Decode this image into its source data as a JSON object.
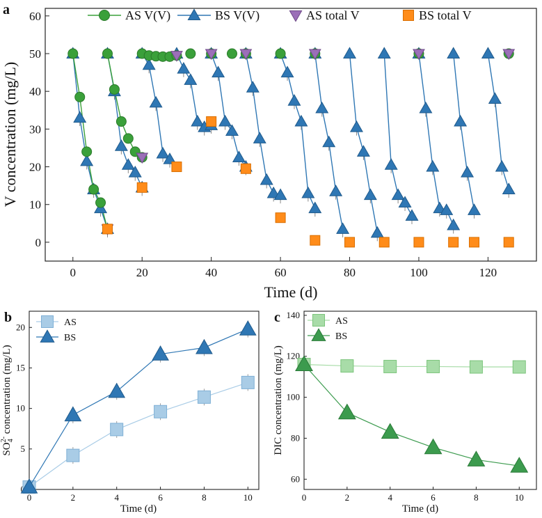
{
  "colors": {
    "as_v": "#3aa03a",
    "as_v_edge": "#2a7a2a",
    "bs_v": "#2f77b4",
    "bs_v_edge": "#1f5a8c",
    "as_total": "#9b6fb8",
    "bs_total": "#ff8c1a",
    "as_so4": "#a9cce6",
    "bs_so4": "#2f77b4",
    "as_dic": "#a8dca8",
    "bs_dic": "#3c9b4e"
  },
  "chart_data": [
    {
      "panel": "a",
      "type": "line",
      "xlabel": "Time (d)",
      "ylabel": "V concentration (mg/L)",
      "xlim": [
        -8,
        134
      ],
      "ylim": [
        -5,
        62
      ],
      "xticks": [
        0,
        20,
        40,
        60,
        80,
        100,
        120
      ],
      "yticks": [
        0,
        10,
        20,
        30,
        40,
        50,
        60
      ],
      "legend_position": "top",
      "series": [
        {
          "name": "AS V(V)",
          "marker": "circle",
          "segments": [
            [
              [
                0,
                50
              ],
              [
                2,
                38.5
              ],
              [
                4,
                24
              ],
              [
                6,
                14
              ],
              [
                8,
                10.5
              ],
              [
                10,
                3.5
              ]
            ],
            [
              [
                10,
                50
              ],
              [
                12,
                40.5
              ],
              [
                14,
                32
              ],
              [
                16,
                27.5
              ],
              [
                18,
                24
              ],
              [
                20,
                22.5
              ]
            ],
            [
              [
                20,
                50
              ],
              [
                22,
                49.5
              ],
              [
                24,
                49.3
              ],
              [
                26,
                49.2
              ],
              [
                28,
                49.2
              ],
              [
                30,
                49.5
              ]
            ],
            [
              [
                34,
                50
              ]
            ],
            [
              [
                40,
                50
              ]
            ],
            [
              [
                46,
                50
              ]
            ],
            [
              [
                50,
                50
              ]
            ],
            [
              [
                60,
                50
              ]
            ],
            [
              [
                70,
                50
              ]
            ],
            [
              [
                100,
                50
              ]
            ],
            [
              [
                126,
                50
              ]
            ]
          ]
        },
        {
          "name": "BS V(V)",
          "marker": "triangle",
          "segments": [
            [
              [
                0,
                50
              ],
              [
                2,
                33
              ],
              [
                4,
                21.5
              ],
              [
                6,
                14
              ],
              [
                8,
                9
              ],
              [
                10,
                3.5
              ]
            ],
            [
              [
                10,
                50
              ],
              [
                12,
                40
              ],
              [
                14,
                25.5
              ],
              [
                16,
                20.5
              ],
              [
                18,
                18.5
              ],
              [
                20,
                14.5
              ]
            ],
            [
              [
                20,
                50
              ],
              [
                22,
                47
              ],
              [
                24,
                37
              ],
              [
                26,
                23.5
              ],
              [
                28,
                22
              ]
            ],
            [
              [
                30,
                50
              ],
              [
                32,
                46
              ],
              [
                34,
                43
              ],
              [
                36,
                32
              ],
              [
                38,
                30.5
              ],
              [
                40,
                31
              ]
            ],
            [
              [
                40,
                50
              ],
              [
                42,
                45
              ],
              [
                44,
                32
              ],
              [
                46,
                29.5
              ],
              [
                48,
                22.5
              ],
              [
                50,
                20
              ]
            ],
            [
              [
                50,
                50
              ],
              [
                52,
                41
              ],
              [
                54,
                27.5
              ],
              [
                56,
                16.5
              ],
              [
                58,
                13
              ],
              [
                60,
                12.5
              ]
            ],
            [
              [
                60,
                50
              ],
              [
                62,
                45
              ],
              [
                64,
                37.5
              ],
              [
                66,
                32
              ],
              [
                68,
                13
              ],
              [
                70,
                9
              ]
            ],
            [
              [
                70,
                50
              ],
              [
                72,
                35.5
              ],
              [
                74,
                26.5
              ],
              [
                76,
                13.5
              ],
              [
                78,
                3.5
              ]
            ],
            [
              [
                80,
                50
              ],
              [
                82,
                30.5
              ],
              [
                84,
                24
              ],
              [
                86,
                12.5
              ],
              [
                88,
                2.5
              ]
            ],
            [
              [
                90,
                50
              ],
              [
                92,
                20.5
              ],
              [
                94,
                12.5
              ],
              [
                96,
                10.5
              ],
              [
                98,
                7
              ]
            ],
            [
              [
                100,
                50
              ],
              [
                102,
                35.5
              ],
              [
                104,
                20
              ],
              [
                106,
                9
              ],
              [
                108,
                8.5
              ],
              [
                110,
                4.5
              ]
            ],
            [
              [
                110,
                50
              ],
              [
                112,
                32
              ],
              [
                114,
                18.5
              ],
              [
                116,
                8.5
              ]
            ],
            [
              [
                120,
                50
              ],
              [
                122,
                38
              ],
              [
                124,
                20
              ],
              [
                126,
                14
              ]
            ]
          ]
        },
        {
          "name": "AS total V",
          "marker": "inverted-triangle",
          "connected": false,
          "points": [
            [
              10,
              3.5
            ],
            [
              20,
              22.5
            ],
            [
              30,
              49.5
            ],
            [
              40,
              50
            ],
            [
              50,
              50
            ],
            [
              70,
              50
            ],
            [
              100,
              50
            ],
            [
              126,
              50
            ]
          ]
        },
        {
          "name": "BS total V",
          "marker": "square",
          "connected": false,
          "points": [
            [
              10,
              3.5
            ],
            [
              20,
              14.5
            ],
            [
              30,
              20
            ],
            [
              40,
              32
            ],
            [
              50,
              19.5
            ],
            [
              60,
              6.5
            ],
            [
              70,
              0.5
            ],
            [
              80,
              0
            ],
            [
              90,
              0
            ],
            [
              100,
              0
            ],
            [
              110,
              0
            ],
            [
              116,
              0
            ],
            [
              126,
              0
            ]
          ]
        }
      ]
    },
    {
      "panel": "b",
      "type": "line",
      "xlabel": "Time (d)",
      "ylabel_main": "SO",
      "ylabel_sub": "4",
      "ylabel_sup": "2-",
      "ylabel_tail": " concentration (mg/L)",
      "xlim": [
        0,
        10.5
      ],
      "ylim": [
        0,
        22
      ],
      "xticks": [
        0,
        2,
        4,
        6,
        8,
        10
      ],
      "yticks": [
        0,
        5,
        10,
        15,
        20
      ],
      "legend_position": "top-left",
      "series": [
        {
          "name": "AS",
          "marker": "square",
          "x": [
            0,
            2,
            4,
            6,
            8,
            10
          ],
          "y": [
            0.3,
            4.2,
            7.4,
            9.6,
            11.4,
            13.2
          ]
        },
        {
          "name": "BS",
          "marker": "triangle",
          "x": [
            0,
            2,
            4,
            6,
            8,
            10
          ],
          "y": [
            0.3,
            9.2,
            12.1,
            16.7,
            17.5,
            19.8
          ]
        }
      ]
    },
    {
      "panel": "c",
      "type": "line",
      "xlabel": "Time (d)",
      "ylabel": "DIC concentration (mg/L)",
      "xlim": [
        0,
        10.8
      ],
      "ylim": [
        55,
        142
      ],
      "xticks": [
        0,
        2,
        4,
        6,
        8,
        10
      ],
      "yticks": [
        60,
        80,
        100,
        120,
        140
      ],
      "legend_position": "top-left",
      "series": [
        {
          "name": "AS",
          "marker": "square",
          "x": [
            0,
            2,
            4,
            6,
            8,
            10
          ],
          "y": [
            116,
            115.3,
            115,
            115,
            114.8,
            114.8
          ]
        },
        {
          "name": "BS",
          "marker": "triangle",
          "x": [
            0,
            2,
            4,
            6,
            8,
            10
          ],
          "y": [
            116,
            92.5,
            83,
            75.5,
            69.5,
            66.5
          ]
        }
      ]
    }
  ],
  "panel_labels": {
    "a": "a",
    "b": "b",
    "c": "c"
  }
}
